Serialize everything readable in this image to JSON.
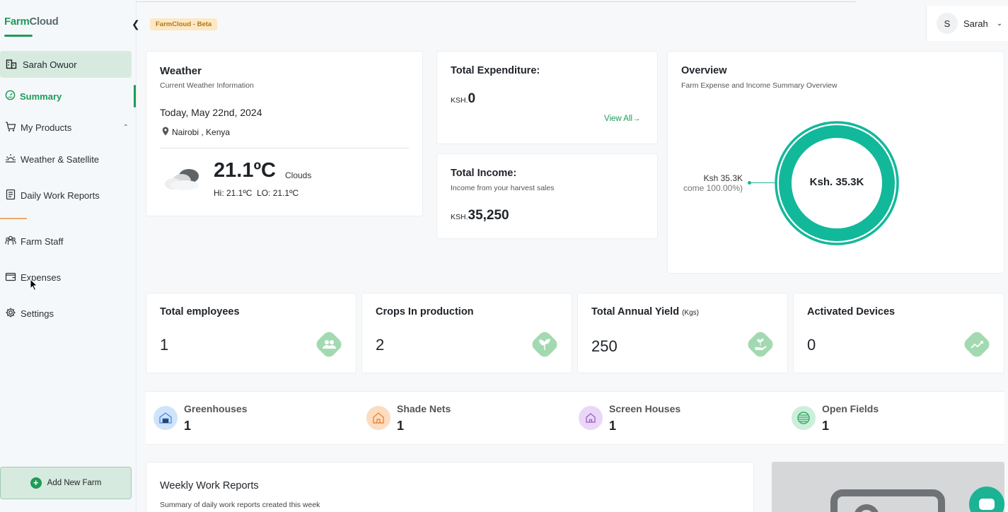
{
  "app": {
    "logo": {
      "part1": "Farm",
      "part2": "Cloud"
    },
    "beta_badge": "FarmCloud - Beta",
    "user": {
      "initial": "S",
      "name": "Sarah"
    }
  },
  "sidebar": {
    "farm_name": "Sarah Owuor",
    "items": [
      {
        "label": "Summary",
        "icon": "speedometer-icon",
        "active": true
      },
      {
        "label": "My Products",
        "icon": "cart-icon"
      },
      {
        "label": "Weather & Satellite",
        "icon": "sun-icon"
      },
      {
        "label": "Daily Work Reports",
        "icon": "document-icon"
      },
      {
        "label": "Farm Staff",
        "icon": "people-icon"
      },
      {
        "label": "Expenses",
        "icon": "wallet-icon"
      },
      {
        "label": "Settings",
        "icon": "gear-icon"
      }
    ],
    "add_farm": "Add New Farm"
  },
  "weather": {
    "title": "Weather",
    "subtitle": "Current Weather Information",
    "date": "Today, May 22nd, 2024",
    "location": "Nairobi , Kenya",
    "temperature": "21.1ºC",
    "condition": "Clouds",
    "hilo": "Hi: 21.1ºC  LO: 21.1ºC"
  },
  "expenditure": {
    "title": "Total Expenditure:",
    "currency": "KSH.",
    "value": "0",
    "view_all": "View All"
  },
  "income": {
    "title": "Total Income:",
    "subtitle": "Income from your harvest sales",
    "currency": "KSH.",
    "value": "35,250"
  },
  "overview": {
    "title": "Overview",
    "subtitle": "Farm Expense and Income Summary Overview",
    "center_label": "Ksh. 35.3K",
    "slice_label": "Ksh 35.3K",
    "slice_pct": "come 100.00%)",
    "color": "#12b89a"
  },
  "stats": [
    {
      "title": "Total employees",
      "unit": "",
      "value": "1",
      "icon": "people-icon"
    },
    {
      "title": "Crops In production",
      "unit": "",
      "value": "2",
      "icon": "sprout-icon"
    },
    {
      "title": "Total Annual Yield",
      "unit": "(Kgs)",
      "value": "250",
      "icon": "harvest-hand-icon"
    },
    {
      "title": "Activated Devices",
      "unit": "",
      "value": "0",
      "icon": "trend-icon"
    }
  ],
  "facilities": [
    {
      "name": "Greenhouses",
      "count": "1",
      "icon": "greenhouse-icon",
      "color": "#cfe3fb"
    },
    {
      "name": "Shade Nets",
      "count": "1",
      "icon": "home-icon",
      "color": "#fddcbf"
    },
    {
      "name": "Screen Houses",
      "count": "1",
      "icon": "home-icon",
      "color": "#ead7f7"
    },
    {
      "name": "Open Fields",
      "count": "1",
      "icon": "field-icon",
      "color": "#cdeedb"
    }
  ],
  "weekly": {
    "title": "Weekly Work Reports",
    "subtitle": "Summary of daily work reports created this week"
  }
}
